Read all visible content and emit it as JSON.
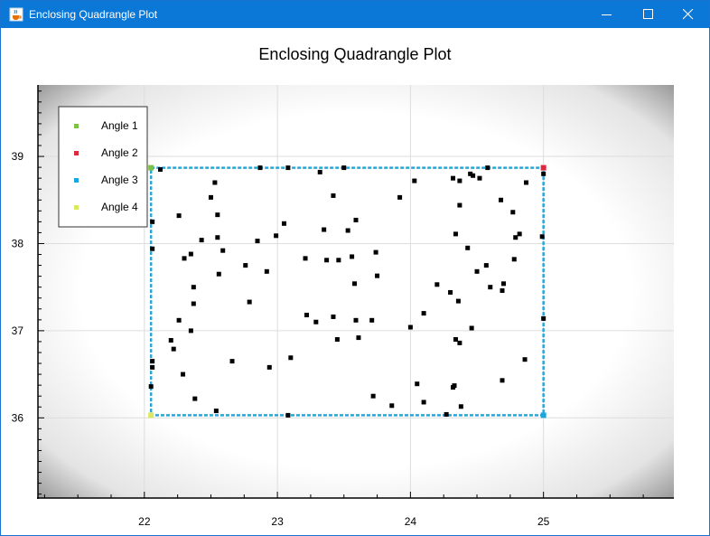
{
  "window": {
    "title": "Enclosing Quadrangle Plot",
    "icon": "java-cup-icon",
    "controls": [
      "minimize-icon",
      "maximize-icon",
      "close-icon"
    ]
  },
  "colors": {
    "titlebar": "#0b78d7",
    "points": "#000000",
    "quad_line": "#2aa5d6",
    "angle1": "#7dc142",
    "angle2": "#e0283c",
    "angle3": "#19a8dd",
    "angle4": "#d9e85c"
  },
  "chart_data": {
    "type": "scatter",
    "title": "Enclosing Quadrangle Plot",
    "xlabel": "",
    "ylabel": "",
    "xlim": [
      21.2,
      25.98
    ],
    "ylim": [
      35.08,
      39.82
    ],
    "x_ticks": [
      22,
      23,
      24,
      25
    ],
    "x_tick_labels": [
      "22",
      "23",
      "24",
      "25"
    ],
    "y_ticks": [
      36,
      37,
      38,
      39
    ],
    "y_tick_labels": [
      "36",
      "37",
      "38",
      "39"
    ],
    "grid": true,
    "legend_position": "top-left",
    "legend": [
      "Angle 1",
      "Angle 2",
      "Angle 3",
      "Angle 4"
    ],
    "quadrangle": {
      "angle1": [
        22.05,
        38.87
      ],
      "angle2": [
        25.0,
        38.87
      ],
      "angle3": [
        25.0,
        36.03
      ],
      "angle4": [
        22.05,
        36.03
      ]
    },
    "points": [
      [
        22.05,
        38.87
      ],
      [
        22.12,
        38.85
      ],
      [
        22.87,
        38.87
      ],
      [
        23.08,
        38.87
      ],
      [
        23.5,
        38.87
      ],
      [
        24.58,
        38.87
      ],
      [
        25.0,
        38.87
      ],
      [
        25.0,
        38.8
      ],
      [
        23.32,
        38.82
      ],
      [
        24.32,
        38.75
      ],
      [
        24.37,
        38.72
      ],
      [
        24.45,
        38.8
      ],
      [
        24.47,
        38.78
      ],
      [
        24.52,
        38.75
      ],
      [
        24.87,
        38.7
      ],
      [
        24.03,
        38.72
      ],
      [
        22.53,
        38.7
      ],
      [
        22.5,
        38.53
      ],
      [
        23.42,
        38.55
      ],
      [
        23.92,
        38.53
      ],
      [
        24.68,
        38.5
      ],
      [
        24.37,
        38.44
      ],
      [
        24.77,
        38.36
      ],
      [
        22.26,
        38.32
      ],
      [
        22.55,
        38.33
      ],
      [
        22.06,
        38.25
      ],
      [
        23.05,
        38.23
      ],
      [
        23.59,
        38.27
      ],
      [
        23.35,
        38.16
      ],
      [
        23.53,
        38.15
      ],
      [
        22.99,
        38.09
      ],
      [
        22.85,
        38.03
      ],
      [
        22.43,
        38.04
      ],
      [
        22.55,
        38.07
      ],
      [
        24.34,
        38.11
      ],
      [
        24.79,
        38.07
      ],
      [
        24.82,
        38.11
      ],
      [
        24.99,
        38.08
      ],
      [
        22.06,
        37.94
      ],
      [
        22.59,
        37.92
      ],
      [
        22.35,
        37.88
      ],
      [
        22.3,
        37.83
      ],
      [
        23.74,
        37.9
      ],
      [
        23.56,
        37.85
      ],
      [
        24.43,
        37.95
      ],
      [
        23.21,
        37.83
      ],
      [
        23.37,
        37.81
      ],
      [
        23.46,
        37.81
      ],
      [
        22.76,
        37.75
      ],
      [
        22.92,
        37.68
      ],
      [
        22.56,
        37.65
      ],
      [
        23.75,
        37.63
      ],
      [
        24.57,
        37.75
      ],
      [
        24.5,
        37.68
      ],
      [
        24.78,
        37.82
      ],
      [
        24.2,
        37.53
      ],
      [
        24.6,
        37.5
      ],
      [
        24.7,
        37.54
      ],
      [
        24.69,
        37.46
      ],
      [
        22.37,
        37.5
      ],
      [
        23.58,
        37.54
      ],
      [
        24.3,
        37.44
      ],
      [
        24.36,
        37.34
      ],
      [
        22.79,
        37.33
      ],
      [
        22.37,
        37.31
      ],
      [
        23.22,
        37.18
      ],
      [
        23.29,
        37.1
      ],
      [
        23.42,
        37.16
      ],
      [
        23.59,
        37.12
      ],
      [
        23.71,
        37.12
      ],
      [
        24.1,
        37.2
      ],
      [
        25.0,
        37.14
      ],
      [
        22.26,
        37.12
      ],
      [
        22.35,
        37.0
      ],
      [
        24.0,
        37.04
      ],
      [
        24.46,
        37.03
      ],
      [
        22.2,
        36.89
      ],
      [
        22.22,
        36.79
      ],
      [
        23.45,
        36.9
      ],
      [
        23.61,
        36.92
      ],
      [
        24.34,
        36.9
      ],
      [
        24.37,
        36.86
      ],
      [
        22.66,
        36.65
      ],
      [
        23.1,
        36.69
      ],
      [
        22.94,
        36.58
      ],
      [
        24.86,
        36.67
      ],
      [
        22.06,
        36.65
      ],
      [
        22.06,
        36.58
      ],
      [
        22.29,
        36.5
      ],
      [
        24.05,
        36.39
      ],
      [
        24.32,
        36.35
      ],
      [
        24.33,
        36.37
      ],
      [
        24.69,
        36.43
      ],
      [
        22.05,
        36.36
      ],
      [
        22.38,
        36.22
      ],
      [
        23.72,
        36.25
      ],
      [
        23.86,
        36.14
      ],
      [
        24.1,
        36.18
      ],
      [
        24.38,
        36.13
      ],
      [
        22.54,
        36.08
      ],
      [
        22.05,
        36.03
      ],
      [
        23.08,
        36.03
      ],
      [
        24.27,
        36.04
      ],
      [
        25.0,
        36.03
      ]
    ]
  }
}
